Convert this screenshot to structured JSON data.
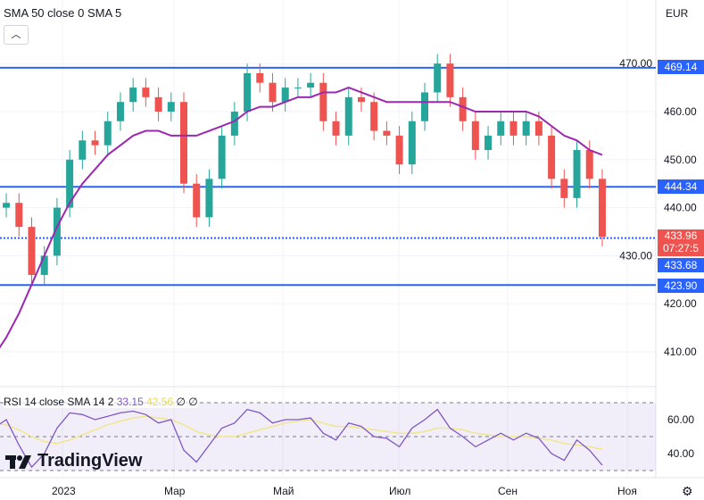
{
  "legend": {
    "main": "SMA 50 close 0 SMA 5",
    "collapse_icon": "chevron-up-icon",
    "currency": "EUR"
  },
  "rsi": {
    "label": "RSI 14 close SMA 14 2",
    "value": "33.15",
    "sma_value": "42.56",
    "extra1": "∅",
    "extra2": "∅"
  },
  "logo": "TradingView",
  "x_axis": [
    "2023",
    "Мар",
    "Май",
    "Июл",
    "Сен",
    "Ноя"
  ],
  "price_tags": {
    "line1": "469.14",
    "line2": "444.34",
    "current": "433.96",
    "countdown": "07:27:5",
    "line3": "433.68",
    "line4": "423.90"
  },
  "colors": {
    "up": "#26a69a",
    "down": "#ef5350",
    "sma": "#9c27b0",
    "levels": "#2962ff",
    "rsi": "#7e57c2",
    "rsi_sma": "#f0e68c"
  },
  "chart_data": {
    "type": "candlestick",
    "y_ticks": [
      410,
      420,
      430,
      440,
      450,
      460,
      470
    ],
    "levels": [
      469.14,
      444.34,
      433.68,
      423.9
    ],
    "start_date": "2022-11-24",
    "interval": "week",
    "closes": [
      440,
      441,
      436,
      426,
      430,
      440,
      450,
      454,
      453,
      458,
      462,
      465,
      463,
      460,
      462,
      445,
      438,
      446,
      455,
      460,
      468,
      466,
      462,
      465,
      465,
      466,
      458,
      455,
      463,
      462,
      456,
      455,
      449,
      458,
      464,
      470,
      463,
      458,
      452,
      455,
      458,
      455,
      458,
      455,
      446,
      442,
      452,
      446,
      433.96
    ],
    "sma50": [
      409,
      413,
      418,
      424,
      430,
      436,
      441,
      445,
      448,
      451,
      453,
      455,
      456,
      456,
      455,
      455,
      455,
      456,
      457,
      458,
      460,
      461,
      461,
      462,
      463,
      463,
      464,
      464,
      465,
      464,
      463,
      462,
      462,
      462,
      462,
      462,
      462,
      461,
      460,
      460,
      460,
      460,
      460,
      459,
      457,
      455,
      454,
      452,
      451
    ],
    "rsi": [
      55,
      60,
      45,
      32,
      40,
      55,
      64,
      63,
      60,
      62,
      64,
      65,
      63,
      58,
      60,
      42,
      35,
      45,
      55,
      58,
      66,
      64,
      58,
      60,
      60,
      61,
      52,
      48,
      58,
      56,
      50,
      49,
      44,
      55,
      60,
      66,
      55,
      50,
      44,
      48,
      52,
      48,
      52,
      49,
      40,
      36,
      48,
      42,
      33.15
    ],
    "rsi_sma": [
      58,
      57,
      54,
      50,
      47,
      46,
      48,
      51,
      54,
      57,
      59,
      61,
      62,
      61,
      60,
      57,
      53,
      51,
      50,
      50,
      52,
      54,
      56,
      58,
      59,
      60,
      58,
      56,
      56,
      55,
      54,
      53,
      52,
      52,
      53,
      55,
      55,
      54,
      52,
      51,
      50,
      50,
      50,
      49,
      48,
      46,
      45,
      44,
      42.56
    ],
    "rsi_levels": [
      70,
      50,
      30
    ],
    "rsi_ticks": [
      60,
      40
    ]
  }
}
